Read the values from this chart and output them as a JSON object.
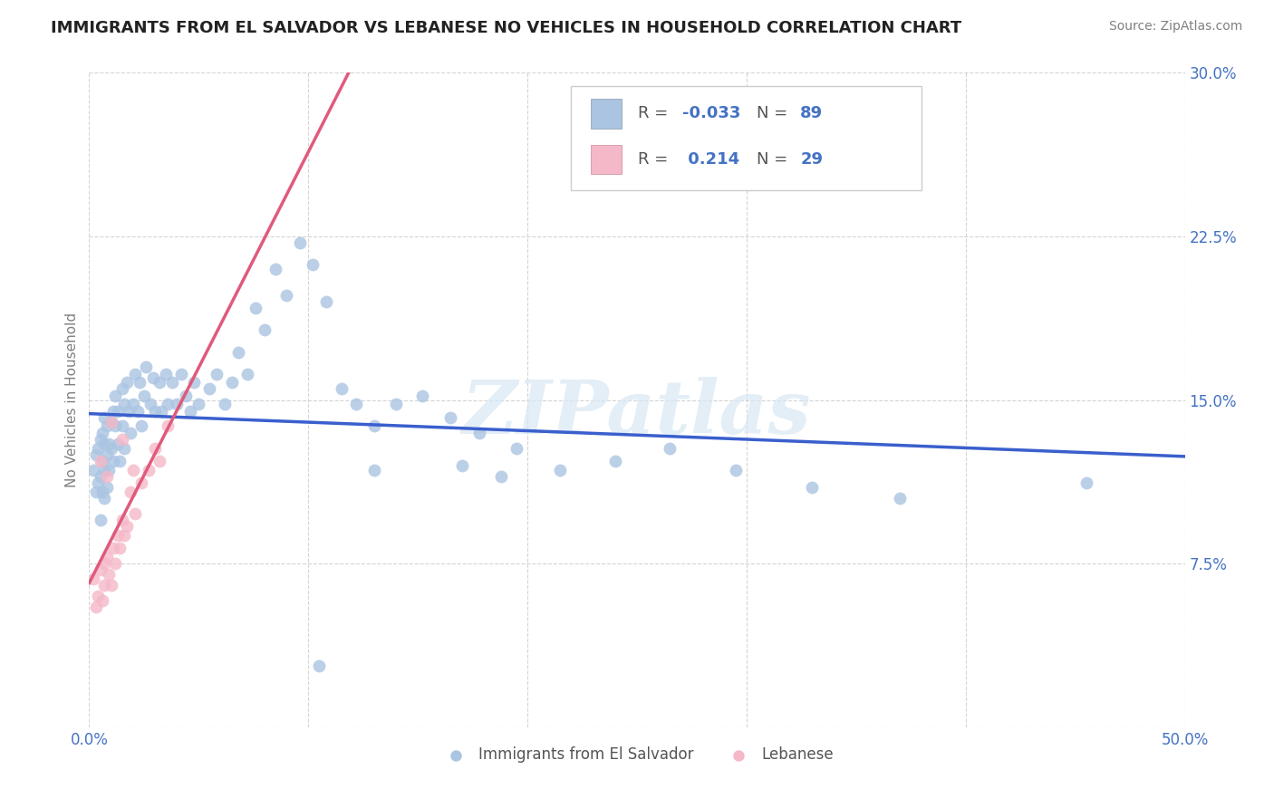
{
  "title": "IMMIGRANTS FROM EL SALVADOR VS LEBANESE NO VEHICLES IN HOUSEHOLD CORRELATION CHART",
  "source": "Source: ZipAtlas.com",
  "ylabel": "No Vehicles in Household",
  "xmin": 0.0,
  "xmax": 0.5,
  "ymin": 0.0,
  "ymax": 0.3,
  "yticks": [
    0.0,
    0.075,
    0.15,
    0.225,
    0.3
  ],
  "ytick_labels": [
    "",
    "7.5%",
    "15.0%",
    "22.5%",
    "30.0%"
  ],
  "xticks": [
    0.0,
    0.1,
    0.2,
    0.3,
    0.4,
    0.5
  ],
  "xtick_labels": [
    "0.0%",
    "",
    "",
    "",
    "",
    "50.0%"
  ],
  "series1_color": "#aac4e2",
  "series2_color": "#f5b8c8",
  "line1_color": "#3a5fcd",
  "line2_color": "#e05a7a",
  "R1": -0.033,
  "N1": 89,
  "R2": 0.214,
  "N2": 29,
  "legend1": "Immigrants from El Salvador",
  "legend2": "Lebanese",
  "watermark": "ZIPatlas",
  "background_color": "#ffffff",
  "grid_color": "#d0d0d0",
  "title_color": "#222222",
  "label_color": "#4472c4",
  "salvador_x": [
    0.002,
    0.003,
    0.003,
    0.004,
    0.004,
    0.005,
    0.005,
    0.005,
    0.006,
    0.006,
    0.006,
    0.007,
    0.007,
    0.007,
    0.007,
    0.008,
    0.008,
    0.008,
    0.009,
    0.009,
    0.01,
    0.01,
    0.011,
    0.011,
    0.012,
    0.012,
    0.013,
    0.013,
    0.014,
    0.015,
    0.015,
    0.016,
    0.016,
    0.017,
    0.018,
    0.019,
    0.02,
    0.021,
    0.022,
    0.023,
    0.024,
    0.025,
    0.026,
    0.028,
    0.029,
    0.03,
    0.032,
    0.033,
    0.035,
    0.036,
    0.038,
    0.04,
    0.042,
    0.044,
    0.046,
    0.048,
    0.05,
    0.055,
    0.058,
    0.062,
    0.065,
    0.068,
    0.072,
    0.076,
    0.08,
    0.085,
    0.09,
    0.096,
    0.102,
    0.108,
    0.115,
    0.122,
    0.13,
    0.14,
    0.152,
    0.165,
    0.178,
    0.195,
    0.215,
    0.24,
    0.265,
    0.295,
    0.33,
    0.37,
    0.17,
    0.188,
    0.13,
    0.105,
    0.455
  ],
  "salvador_y": [
    0.118,
    0.108,
    0.125,
    0.112,
    0.128,
    0.095,
    0.115,
    0.132,
    0.108,
    0.122,
    0.135,
    0.105,
    0.118,
    0.13,
    0.142,
    0.11,
    0.125,
    0.138,
    0.118,
    0.13,
    0.14,
    0.128,
    0.145,
    0.122,
    0.138,
    0.152,
    0.13,
    0.145,
    0.122,
    0.155,
    0.138,
    0.148,
    0.128,
    0.158,
    0.145,
    0.135,
    0.148,
    0.162,
    0.145,
    0.158,
    0.138,
    0.152,
    0.165,
    0.148,
    0.16,
    0.145,
    0.158,
    0.145,
    0.162,
    0.148,
    0.158,
    0.148,
    0.162,
    0.152,
    0.145,
    0.158,
    0.148,
    0.155,
    0.162,
    0.148,
    0.158,
    0.172,
    0.162,
    0.192,
    0.182,
    0.21,
    0.198,
    0.222,
    0.212,
    0.195,
    0.155,
    0.148,
    0.138,
    0.148,
    0.152,
    0.142,
    0.135,
    0.128,
    0.118,
    0.122,
    0.128,
    0.118,
    0.11,
    0.105,
    0.12,
    0.115,
    0.118,
    0.028,
    0.112
  ],
  "lebanese_x": [
    0.002,
    0.003,
    0.004,
    0.005,
    0.006,
    0.007,
    0.007,
    0.008,
    0.009,
    0.01,
    0.011,
    0.012,
    0.013,
    0.014,
    0.015,
    0.016,
    0.017,
    0.019,
    0.021,
    0.024,
    0.027,
    0.03,
    0.032,
    0.036,
    0.01,
    0.015,
    0.02,
    0.005,
    0.008
  ],
  "lebanese_y": [
    0.068,
    0.055,
    0.06,
    0.072,
    0.058,
    0.075,
    0.065,
    0.078,
    0.07,
    0.065,
    0.082,
    0.075,
    0.088,
    0.082,
    0.095,
    0.088,
    0.092,
    0.108,
    0.098,
    0.112,
    0.118,
    0.128,
    0.122,
    0.138,
    0.14,
    0.132,
    0.118,
    0.122,
    0.115
  ]
}
